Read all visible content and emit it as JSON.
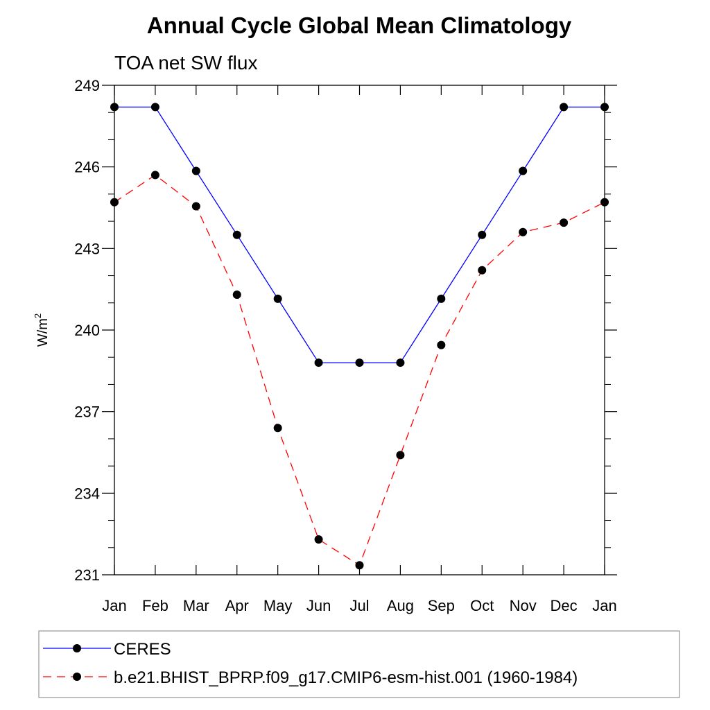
{
  "chart_data": {
    "type": "line",
    "title": "Annual Cycle Global Mean Climatology",
    "subtitle": "TOA net SW flux",
    "ylabel_main": "W/m",
    "ylabel_sup": "2",
    "categories": [
      "Jan",
      "Feb",
      "Mar",
      "Apr",
      "May",
      "Jun",
      "Jul",
      "Aug",
      "Sep",
      "Oct",
      "Nov",
      "Dec",
      "Jan"
    ],
    "yticks": [
      "249",
      "246",
      "243",
      "240",
      "237",
      "234",
      "231"
    ],
    "ylim": [
      231,
      249
    ],
    "grid": false,
    "legend_position": "bottom",
    "series": [
      {
        "name": "CERES",
        "color": "#0000ff",
        "dash": "solid",
        "values": [
          248.2,
          248.2,
          245.85,
          243.5,
          241.15,
          238.8,
          238.8,
          238.8,
          241.15,
          243.5,
          245.85,
          248.2,
          248.2
        ]
      },
      {
        "name": "b.e21.BHIST_BPRP.f09_g17.CMIP6-esm-hist.001 (1960-1984)",
        "color": "#ff0000",
        "dash": "dashed",
        "values": [
          244.7,
          245.7,
          244.55,
          241.3,
          236.4,
          232.3,
          231.35,
          235.4,
          239.45,
          242.2,
          243.6,
          243.95,
          244.7
        ]
      }
    ]
  }
}
